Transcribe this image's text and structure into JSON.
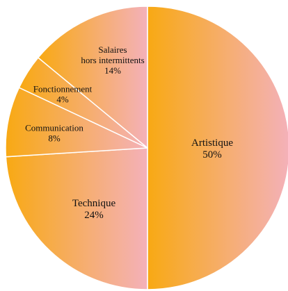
{
  "chart_data": {
    "type": "pie",
    "categories": [
      "Artistique",
      "Technique",
      "Communication",
      "Fonctionnement",
      "Salaires hors intermittents"
    ],
    "values": [
      50,
      24,
      8,
      4,
      14
    ],
    "value_labels": [
      "50%",
      "24%",
      "8%",
      "4%",
      "14%"
    ],
    "gradient": [
      "#f8a913",
      "#f4b1ba"
    ]
  }
}
